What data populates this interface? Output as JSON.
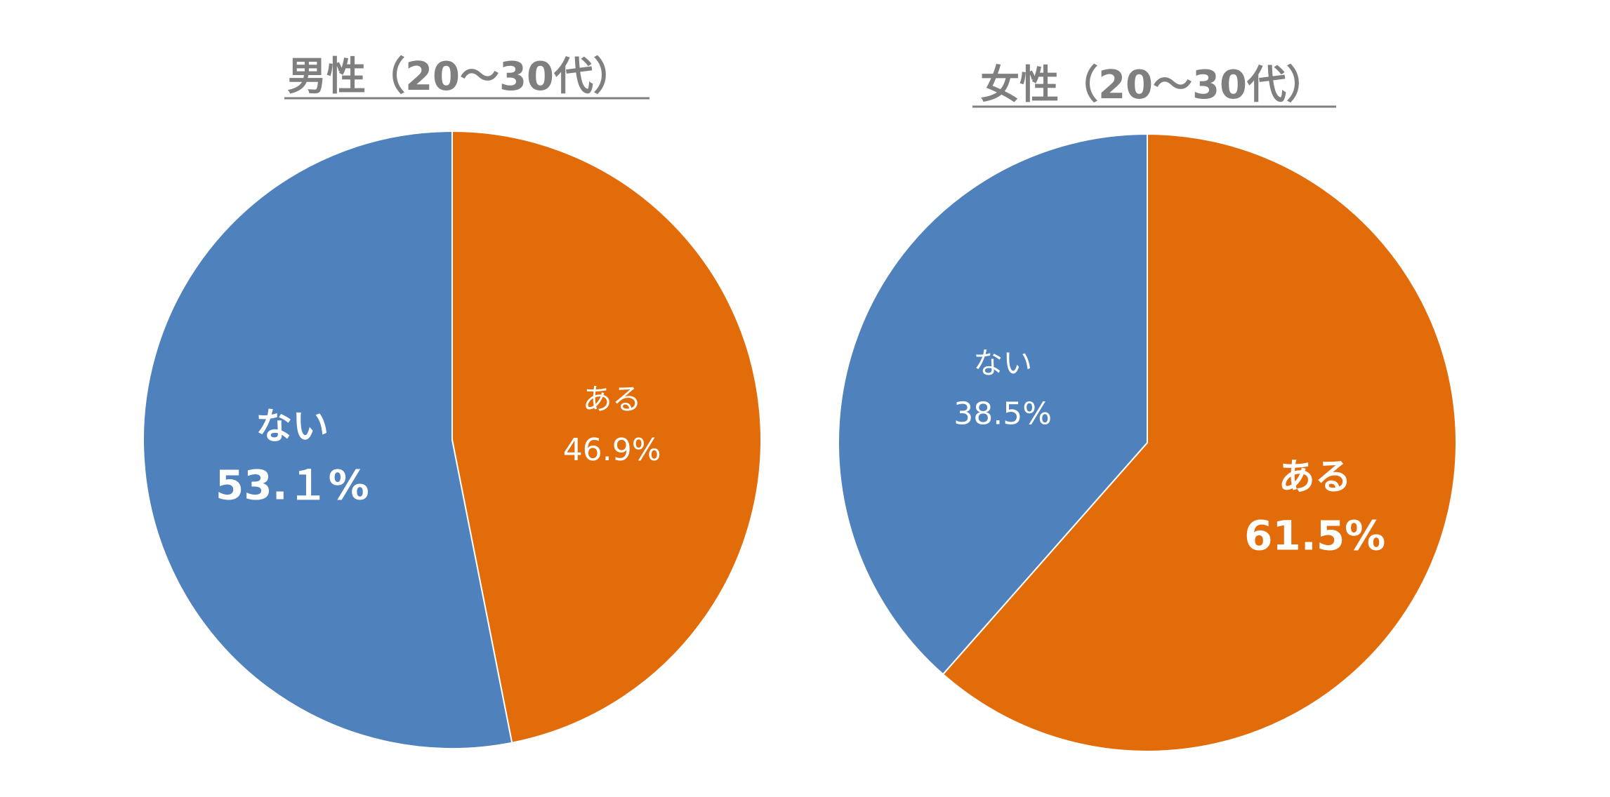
{
  "colors": {
    "aru": "#E36C0A",
    "nai": "#4F81BD",
    "title": "#7F7F7F",
    "label": "#FFFFFF"
  },
  "chart_data": [
    {
      "type": "pie",
      "title": "男性（20〜30代）",
      "slices": [
        {
          "label": "ある",
          "value": 46.9,
          "display": "46.9%",
          "color": "#E36C0A",
          "emphasis": false
        },
        {
          "label": "ない",
          "value": 53.1,
          "display": "53.１%",
          "color": "#4F81BD",
          "emphasis": true
        }
      ]
    },
    {
      "type": "pie",
      "title": "女性（20〜30代）",
      "slices": [
        {
          "label": "ある",
          "value": 61.5,
          "display": "61.5%",
          "color": "#E36C0A",
          "emphasis": true
        },
        {
          "label": "ない",
          "value": 38.5,
          "display": "38.5%",
          "color": "#4F81BD",
          "emphasis": false
        }
      ]
    }
  ]
}
